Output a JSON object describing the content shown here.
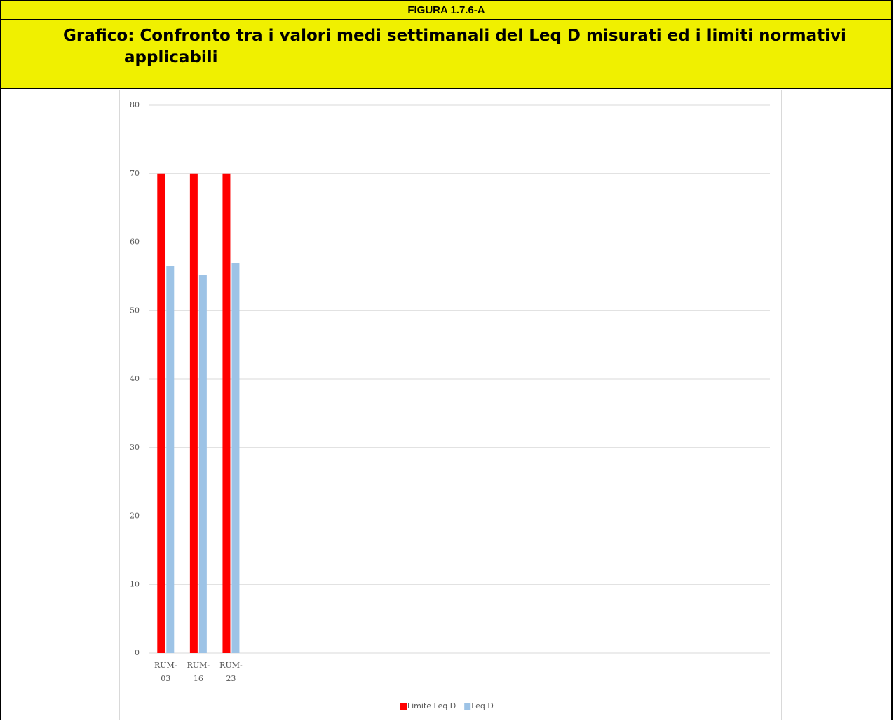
{
  "header": {
    "figure": "FIGURA 1.7.6-A",
    "title": "Grafico: Confronto tra i valori medi settimanali del Leq D misurati ed i limiti normativi applicabili"
  },
  "chart_data": {
    "type": "bar",
    "categories": [
      "RUM-03",
      "RUM-16",
      "RUM-23",
      null,
      null,
      null,
      null,
      null,
      null,
      null,
      null,
      null,
      null,
      null,
      null,
      null,
      null,
      null,
      null
    ],
    "series": [
      {
        "name": "Limite Leq D",
        "color": "#ff0000",
        "values": [
          70,
          70,
          70,
          null,
          null,
          null,
          null,
          null,
          null,
          null,
          null,
          null,
          null,
          null,
          null,
          null,
          null,
          null,
          null
        ]
      },
      {
        "name": "Leq D",
        "color": "#9dc3e6",
        "values": [
          56.5,
          55.2,
          56.9,
          null,
          null,
          null,
          null,
          null,
          null,
          null,
          null,
          null,
          null,
          null,
          null,
          null,
          null,
          null,
          null
        ]
      }
    ],
    "ylim": [
      0,
      80
    ],
    "yticks": [
      0,
      10,
      20,
      30,
      40,
      50,
      60,
      70,
      80
    ],
    "grid": true,
    "legend": "bottom"
  }
}
